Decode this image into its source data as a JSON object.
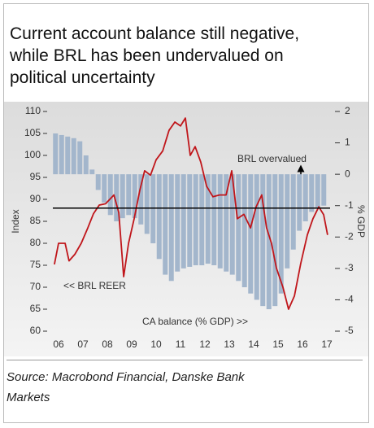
{
  "chart_data": {
    "type": "combo",
    "title_lines": [
      "Current account balance still negative,",
      "while BRL has been undervalued on",
      "political uncertainty"
    ],
    "ylabel": "Index",
    "y2label": "% GDP",
    "xlim": [
      2006.1,
      2017.7
    ],
    "xticks": [
      {
        "value": 2006.5,
        "label": "06"
      },
      {
        "value": 2007.5,
        "label": "07"
      },
      {
        "value": 2008.5,
        "label": "08"
      },
      {
        "value": 2009.5,
        "label": "09"
      },
      {
        "value": 2010.5,
        "label": "10"
      },
      {
        "value": 2011.5,
        "label": "11"
      },
      {
        "value": 2012.5,
        "label": "12"
      },
      {
        "value": 2013.5,
        "label": "13"
      },
      {
        "value": 2014.5,
        "label": "14"
      },
      {
        "value": 2015.5,
        "label": "15"
      },
      {
        "value": 2016.5,
        "label": "16"
      },
      {
        "value": 2017.5,
        "label": "17"
      }
    ],
    "ylim": [
      60,
      110
    ],
    "yticks": [
      60,
      65,
      70,
      75,
      80,
      85,
      90,
      95,
      100,
      105,
      110
    ],
    "y2lim": [
      -5,
      2
    ],
    "y2ticks": [
      -5,
      -4,
      -3,
      -2,
      -1,
      0,
      1,
      2
    ],
    "hline": 88,
    "series": [
      {
        "name": "CA balance (% GDP) >>",
        "kind": "bar",
        "axis": "y2",
        "color": "#a3b6cc",
        "x": [
          2006.375,
          2006.625,
          2006.875,
          2007.125,
          2007.375,
          2007.625,
          2007.875,
          2008.125,
          2008.375,
          2008.625,
          2008.875,
          2009.125,
          2009.375,
          2009.625,
          2009.875,
          2010.125,
          2010.375,
          2010.625,
          2010.875,
          2011.125,
          2011.375,
          2011.625,
          2011.875,
          2012.125,
          2012.375,
          2012.625,
          2012.875,
          2013.125,
          2013.375,
          2013.625,
          2013.875,
          2014.125,
          2014.375,
          2014.625,
          2014.875,
          2015.125,
          2015.375,
          2015.625,
          2015.875,
          2016.125,
          2016.375,
          2016.625,
          2016.875,
          2017.125,
          2017.375
        ],
        "values": [
          1.3,
          1.25,
          1.2,
          1.15,
          1.05,
          0.6,
          0.15,
          -0.5,
          -0.9,
          -1.3,
          -1.5,
          -1.4,
          -1.3,
          -1.4,
          -1.6,
          -1.9,
          -2.2,
          -2.7,
          -3.2,
          -3.4,
          -3.1,
          -3.0,
          -2.95,
          -2.9,
          -2.9,
          -2.85,
          -2.9,
          -3.0,
          -3.1,
          -3.2,
          -3.4,
          -3.6,
          -3.8,
          -4.0,
          -4.2,
          -4.3,
          -4.2,
          -3.8,
          -3.0,
          -2.4,
          -1.8,
          -1.5,
          -1.2,
          -1.1,
          -1.0
        ]
      },
      {
        "name": "<< BRL REER",
        "kind": "line",
        "axis": "y",
        "color": "#c0161b",
        "x": [
          2006.33,
          2006.5,
          2006.77,
          2006.93,
          2007.17,
          2007.43,
          2007.7,
          2007.93,
          2008.17,
          2008.43,
          2008.77,
          2008.97,
          2009.17,
          2009.37,
          2009.6,
          2009.83,
          2010.03,
          2010.27,
          2010.5,
          2010.77,
          2011.03,
          2011.27,
          2011.5,
          2011.7,
          2011.9,
          2012.1,
          2012.33,
          2012.57,
          2012.83,
          2013.1,
          2013.37,
          2013.6,
          2013.83,
          2014.1,
          2014.37,
          2014.6,
          2014.83,
          2015.03,
          2015.23,
          2015.43,
          2015.7,
          2015.93,
          2016.17,
          2016.43,
          2016.7,
          2016.93,
          2017.17,
          2017.37,
          2017.53
        ],
        "values": [
          75.2,
          80,
          80,
          76,
          77.5,
          80,
          83.5,
          86.7,
          88.7,
          89,
          91,
          87,
          72.4,
          80,
          85.6,
          92,
          96.5,
          95.5,
          99,
          101,
          105.7,
          107.6,
          106.7,
          108.5,
          100,
          102,
          98.5,
          93,
          90.6,
          91,
          91,
          96.5,
          85.6,
          86.6,
          83.5,
          88.3,
          91,
          83.5,
          80,
          74.4,
          70,
          65,
          68,
          75.4,
          81.9,
          85.6,
          88.3,
          86.5,
          81.9
        ]
      }
    ],
    "annotation": "BRL overvalued",
    "source_lines": [
      "Source: Macrobond Financial, Danske Bank",
      "Markets"
    ]
  }
}
